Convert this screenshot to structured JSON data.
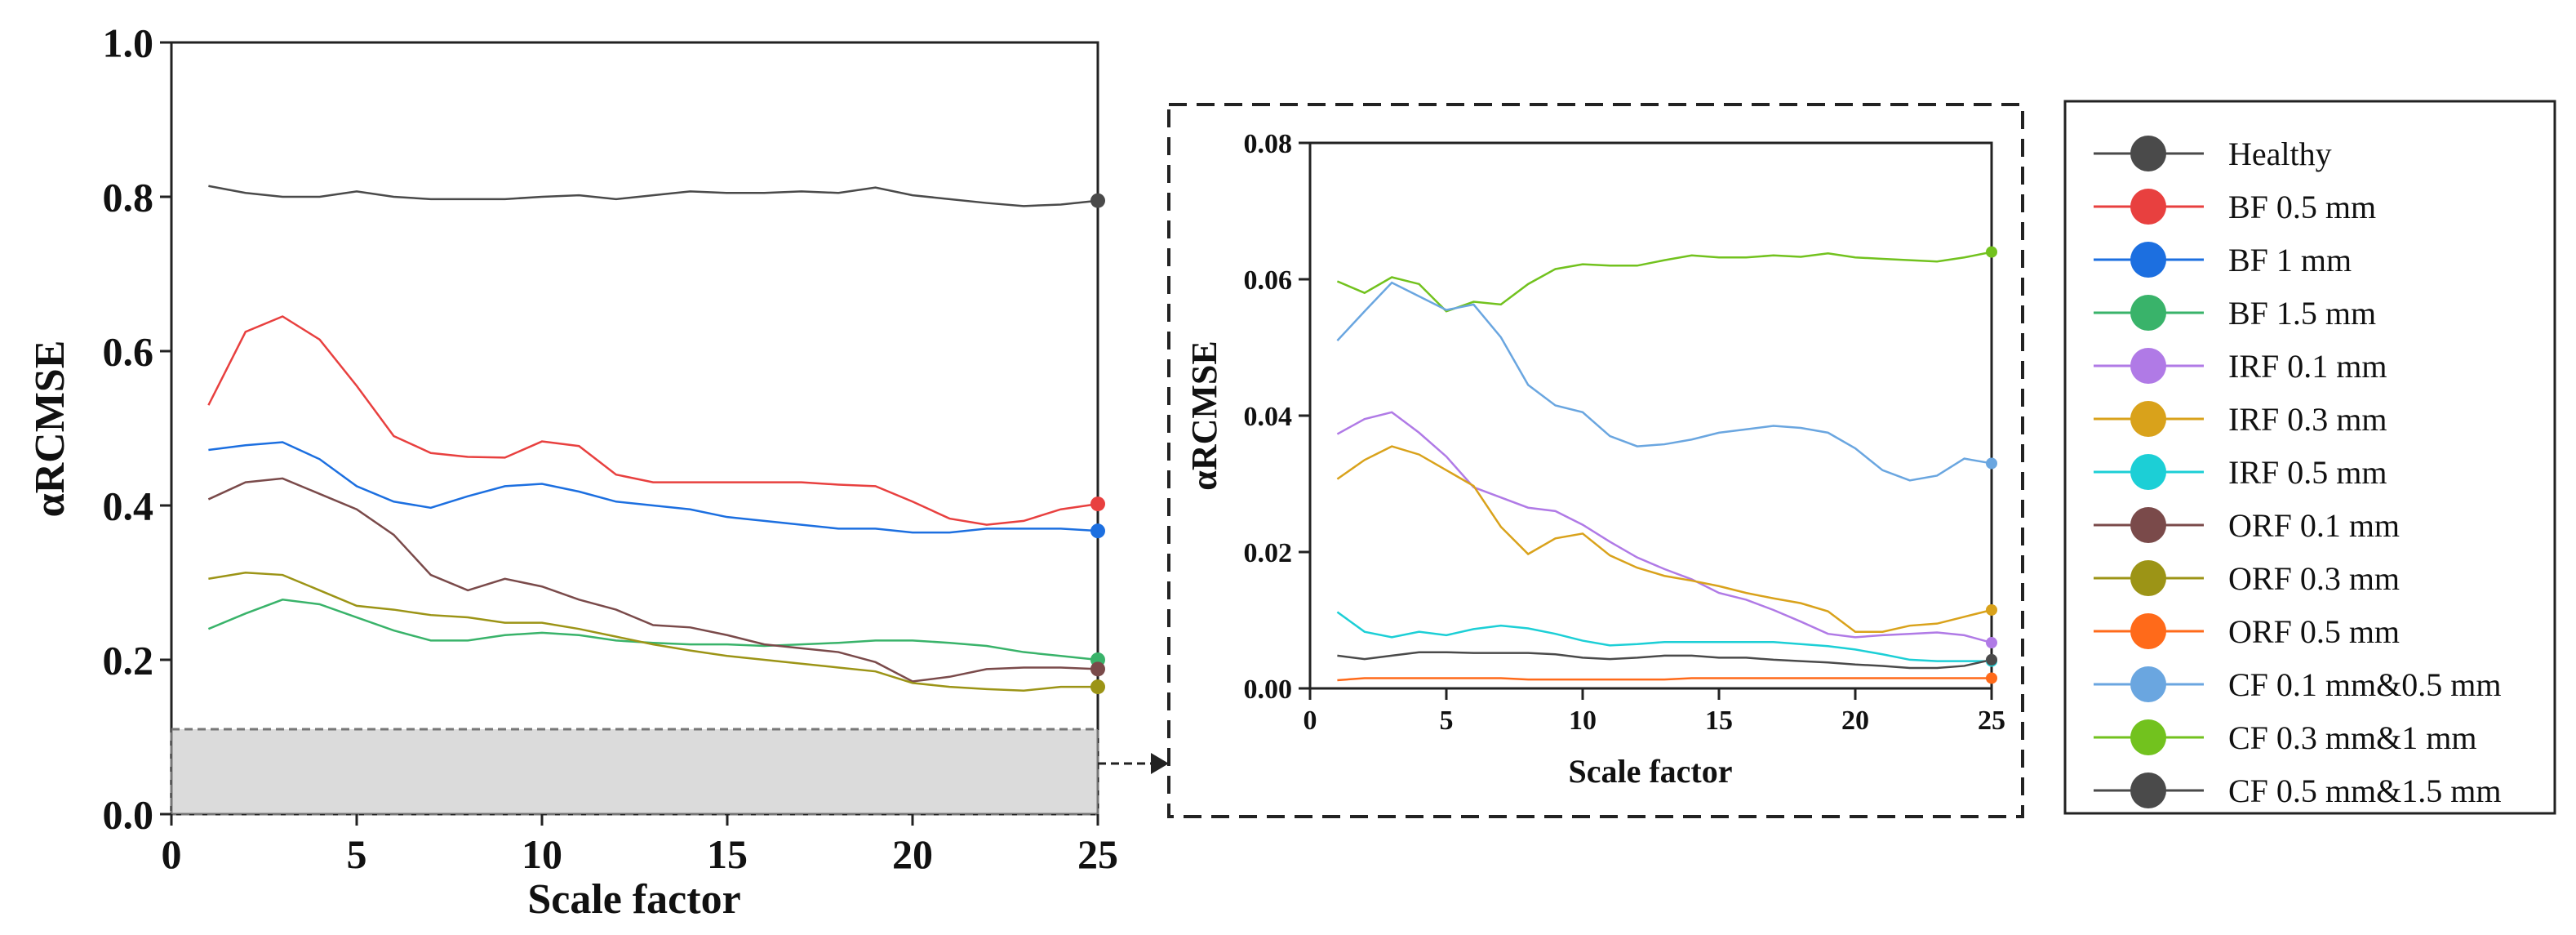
{
  "chart_data": [
    {
      "type": "line",
      "xlabel": "Scale factor",
      "ylabel": "αRCMSE",
      "xlim": [
        0,
        25
      ],
      "ylim": [
        0,
        1.0
      ],
      "xticks": [
        "0",
        "5",
        "10",
        "15",
        "20",
        "25"
      ],
      "yticks": [
        "0.0",
        "0.2",
        "0.4",
        "0.6",
        "0.8",
        "1.0"
      ],
      "x": [
        1,
        2,
        3,
        4,
        5,
        6,
        7,
        8,
        9,
        10,
        11,
        12,
        13,
        14,
        15,
        16,
        17,
        18,
        19,
        20,
        21,
        22,
        23,
        24,
        25
      ],
      "series": [
        {
          "name": "Healthy",
          "values": [
            0.814,
            0.805,
            0.8,
            0.8,
            0.807,
            0.8,
            0.797,
            0.797,
            0.797,
            0.8,
            0.802,
            0.797,
            0.802,
            0.807,
            0.805,
            0.805,
            0.807,
            0.805,
            0.812,
            0.802,
            0.797,
            0.792,
            0.788,
            0.79,
            0.795
          ]
        },
        {
          "name": "BF 0.5 mm",
          "values": [
            0.53,
            0.625,
            0.645,
            0.615,
            0.555,
            0.49,
            0.468,
            0.463,
            0.462,
            0.483,
            0.477,
            0.44,
            0.43,
            0.43,
            0.43,
            0.43,
            0.43,
            0.427,
            0.425,
            0.405,
            0.383,
            0.375,
            0.38,
            0.395,
            0.402
          ]
        },
        {
          "name": "BF 1 mm",
          "values": [
            0.472,
            0.478,
            0.482,
            0.46,
            0.425,
            0.405,
            0.397,
            0.412,
            0.425,
            0.428,
            0.418,
            0.405,
            0.4,
            0.395,
            0.385,
            0.38,
            0.375,
            0.37,
            0.37,
            0.365,
            0.365,
            0.37,
            0.37,
            0.37,
            0.367
          ]
        },
        {
          "name": "BF 1.5 mm",
          "values": [
            0.24,
            0.26,
            0.278,
            0.272,
            0.255,
            0.238,
            0.225,
            0.225,
            0.232,
            0.235,
            0.232,
            0.225,
            0.222,
            0.22,
            0.22,
            0.218,
            0.22,
            0.222,
            0.225,
            0.225,
            0.222,
            0.218,
            0.21,
            0.205,
            0.2
          ]
        },
        {
          "name": "ORF 0.1 mm",
          "values": [
            0.408,
            0.43,
            0.435,
            0.415,
            0.395,
            0.362,
            0.31,
            0.29,
            0.305,
            0.295,
            0.278,
            0.265,
            0.245,
            0.242,
            0.232,
            0.22,
            0.215,
            0.21,
            0.197,
            0.172,
            0.178,
            0.188,
            0.19,
            0.19,
            0.188
          ]
        },
        {
          "name": "ORF 0.3 mm",
          "values": [
            0.305,
            0.313,
            0.31,
            0.29,
            0.27,
            0.265,
            0.258,
            0.255,
            0.248,
            0.248,
            0.24,
            0.23,
            0.22,
            0.212,
            0.205,
            0.2,
            0.195,
            0.19,
            0.185,
            0.17,
            0.165,
            0.162,
            0.16,
            0.165,
            0.165
          ]
        }
      ],
      "highlight_range_y": [
        0,
        0.08
      ],
      "annotation": "arrow to inset"
    },
    {
      "type": "line",
      "xlabel": "Scale factor",
      "ylabel": "αRCMSE",
      "xlim": [
        0,
        25
      ],
      "ylim": [
        0,
        0.08
      ],
      "xticks": [
        "0",
        "5",
        "10",
        "15",
        "20",
        "25"
      ],
      "yticks": [
        "0.00",
        "0.02",
        "0.04",
        "0.06",
        "0.08"
      ],
      "x": [
        1,
        2,
        3,
        4,
        5,
        6,
        7,
        8,
        9,
        10,
        11,
        12,
        13,
        14,
        15,
        16,
        17,
        18,
        19,
        20,
        21,
        22,
        23,
        24,
        25
      ],
      "series": [
        {
          "name": "CF 0.3 mm&1 mm",
          "values": [
            0.0597,
            0.058,
            0.0603,
            0.0593,
            0.0553,
            0.0567,
            0.0563,
            0.0593,
            0.0615,
            0.0622,
            0.062,
            0.062,
            0.0628,
            0.0635,
            0.0632,
            0.0632,
            0.0635,
            0.0633,
            0.0638,
            0.0632,
            0.063,
            0.0628,
            0.0626,
            0.0632,
            0.064
          ]
        },
        {
          "name": "CF 0.1 mm&0.5 mm",
          "values": [
            0.051,
            0.0553,
            0.0595,
            0.0575,
            0.0555,
            0.0563,
            0.0515,
            0.0445,
            0.0415,
            0.0405,
            0.037,
            0.0355,
            0.0358,
            0.0365,
            0.0375,
            0.038,
            0.0385,
            0.0382,
            0.0375,
            0.0352,
            0.032,
            0.0305,
            0.0312,
            0.0337,
            0.033
          ]
        },
        {
          "name": "IRF 0.1 mm",
          "values": [
            0.0373,
            0.0395,
            0.0405,
            0.0375,
            0.034,
            0.0295,
            0.028,
            0.0265,
            0.026,
            0.024,
            0.0215,
            0.0192,
            0.0175,
            0.016,
            0.014,
            0.013,
            0.0115,
            0.0098,
            0.008,
            0.0075,
            0.0078,
            0.008,
            0.0082,
            0.0078,
            0.0067
          ]
        },
        {
          "name": "IRF 0.3 mm",
          "values": [
            0.0307,
            0.0335,
            0.0355,
            0.0343,
            0.032,
            0.0297,
            0.0237,
            0.0197,
            0.022,
            0.0227,
            0.0195,
            0.0177,
            0.0165,
            0.0158,
            0.015,
            0.014,
            0.0132,
            0.0125,
            0.0113,
            0.0083,
            0.0083,
            0.0092,
            0.0095,
            0.0105,
            0.0115
          ]
        },
        {
          "name": "IRF 0.5 mm",
          "values": [
            0.0112,
            0.0083,
            0.0075,
            0.0083,
            0.0078,
            0.0087,
            0.0092,
            0.0088,
            0.008,
            0.007,
            0.0063,
            0.0065,
            0.0068,
            0.0068,
            0.0068,
            0.0068,
            0.0068,
            0.0065,
            0.0062,
            0.0057,
            0.005,
            0.0042,
            0.004,
            0.004,
            0.004
          ]
        },
        {
          "name": "CF 0.5 mm&1.5 mm",
          "values": [
            0.0048,
            0.0043,
            0.0048,
            0.0053,
            0.0053,
            0.0052,
            0.0052,
            0.0052,
            0.005,
            0.0045,
            0.0043,
            0.0045,
            0.0048,
            0.0048,
            0.0045,
            0.0045,
            0.0042,
            0.004,
            0.0038,
            0.0035,
            0.0033,
            0.003,
            0.003,
            0.0033,
            0.0042
          ]
        },
        {
          "name": "ORF 0.5 mm",
          "values": [
            0.0012,
            0.0015,
            0.0015,
            0.0015,
            0.0015,
            0.0015,
            0.0015,
            0.0013,
            0.0013,
            0.0013,
            0.0013,
            0.0013,
            0.0013,
            0.0015,
            0.0015,
            0.0015,
            0.0015,
            0.0015,
            0.0015,
            0.0015,
            0.0015,
            0.0015,
            0.0015,
            0.0015,
            0.0015
          ]
        }
      ]
    }
  ],
  "legend": [
    {
      "name": "Healthy",
      "color": "#4a4a4a"
    },
    {
      "name": "BF 0.5 mm",
      "color": "#e8403f"
    },
    {
      "name": "BF 1 mm",
      "color": "#1c6fe0"
    },
    {
      "name": "BF 1.5 mm",
      "color": "#39b36a"
    },
    {
      "name": "IRF 0.1 mm",
      "color": "#b07ae6"
    },
    {
      "name": "IRF 0.3 mm",
      "color": "#d9a21b"
    },
    {
      "name": "IRF 0.5 mm",
      "color": "#1ccfd6"
    },
    {
      "name": "ORF 0.1 mm",
      "color": "#7a4a4a"
    },
    {
      "name": "ORF 0.3 mm",
      "color": "#9c9416"
    },
    {
      "name": "ORF 0.5 mm",
      "color": "#ff6a1a"
    },
    {
      "name": "CF 0.1 mm&0.5 mm",
      "color": "#6aa6e0"
    },
    {
      "name": "CF 0.3 mm&1 mm",
      "color": "#72c21e"
    },
    {
      "name": "CF 0.5 mm&1.5 mm",
      "color": "#4a4a4a"
    }
  ]
}
